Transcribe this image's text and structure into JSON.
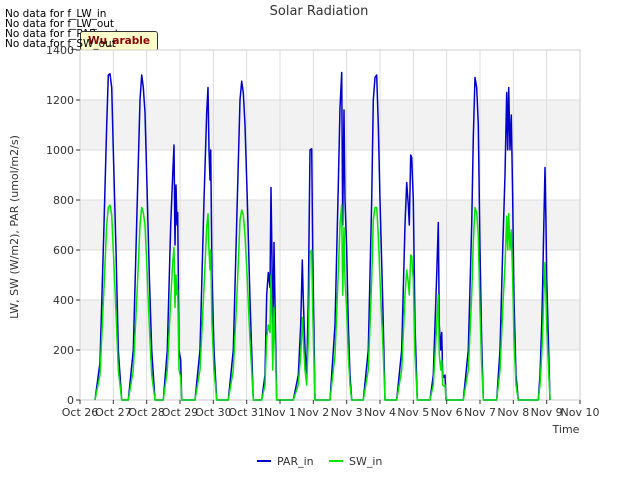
{
  "nodata_messages": [
    "No data for f_LW_in",
    "No data for f_LW_out",
    "No data for f_PAR_out",
    "No data for f_SW_out"
  ],
  "badge_text": "Wu_arable",
  "chart_data": {
    "type": "line",
    "title": "Solar Radiation",
    "xlabel": "Time",
    "ylabel": "LW, SW (W/m2), PAR (umol/m2/s)",
    "xlim": [
      "2023-10-26",
      "2023-11-10"
    ],
    "ylim": [
      0,
      1400
    ],
    "x_ticks": [
      "Oct 26",
      "Oct 27",
      "Oct 28",
      "Oct 29",
      "Oct 30",
      "Oct 31",
      "Nov 1",
      "Nov 2",
      "Nov 3",
      "Nov 4",
      "Nov 5",
      "Nov 6",
      "Nov 7",
      "Nov 8",
      "Nov 9",
      "Nov 10"
    ],
    "y_ticks": [
      0,
      200,
      400,
      600,
      800,
      1000,
      1200,
      1400
    ],
    "grid": true,
    "legend_position": "bottom-center",
    "x_unit": "day",
    "series": [
      {
        "name": "PAR_in",
        "color": "#0000cc",
        "points": [
          [
            0.45,
            0
          ],
          [
            0.6,
            150
          ],
          [
            0.72,
            700
          ],
          [
            0.8,
            1100
          ],
          [
            0.85,
            1300
          ],
          [
            0.9,
            1305
          ],
          [
            0.95,
            1250
          ],
          [
            1.0,
            1000
          ],
          [
            1.08,
            600
          ],
          [
            1.15,
            200
          ],
          [
            1.25,
            0
          ],
          [
            1.45,
            0
          ],
          [
            1.6,
            200
          ],
          [
            1.72,
            800
          ],
          [
            1.8,
            1200
          ],
          [
            1.85,
            1300
          ],
          [
            1.9,
            1250
          ],
          [
            1.95,
            1150
          ],
          [
            2.0,
            900
          ],
          [
            2.08,
            500
          ],
          [
            2.15,
            200
          ],
          [
            2.25,
            0
          ],
          [
            2.5,
            0
          ],
          [
            2.62,
            200
          ],
          [
            2.72,
            700
          ],
          [
            2.78,
            900
          ],
          [
            2.82,
            1020
          ],
          [
            2.85,
            620
          ],
          [
            2.88,
            860
          ],
          [
            2.91,
            700
          ],
          [
            2.93,
            750
          ],
          [
            2.97,
            200
          ],
          [
            3.02,
            160
          ],
          [
            3.05,
            0
          ],
          [
            3.45,
            0
          ],
          [
            3.6,
            200
          ],
          [
            3.72,
            800
          ],
          [
            3.8,
            1150
          ],
          [
            3.84,
            1250
          ],
          [
            3.87,
            1000
          ],
          [
            3.9,
            880
          ],
          [
            3.92,
            1000
          ],
          [
            3.96,
            500
          ],
          [
            4.02,
            200
          ],
          [
            4.1,
            0
          ],
          [
            4.45,
            0
          ],
          [
            4.6,
            200
          ],
          [
            4.72,
            800
          ],
          [
            4.8,
            1200
          ],
          [
            4.85,
            1275
          ],
          [
            4.9,
            1230
          ],
          [
            4.95,
            1100
          ],
          [
            5.02,
            800
          ],
          [
            5.1,
            400
          ],
          [
            5.2,
            0
          ],
          [
            5.45,
            0
          ],
          [
            5.55,
            100
          ],
          [
            5.6,
            420
          ],
          [
            5.65,
            510
          ],
          [
            5.7,
            450
          ],
          [
            5.73,
            850
          ],
          [
            5.76,
            560
          ],
          [
            5.78,
            200
          ],
          [
            5.82,
            630
          ],
          [
            5.85,
            380
          ],
          [
            5.9,
            0
          ],
          [
            6.4,
            0
          ],
          [
            6.55,
            100
          ],
          [
            6.62,
            300
          ],
          [
            6.67,
            560
          ],
          [
            6.7,
            400
          ],
          [
            6.75,
            200
          ],
          [
            6.8,
            100
          ],
          [
            6.85,
            400
          ],
          [
            6.9,
            1000
          ],
          [
            6.95,
            1005
          ],
          [
            6.98,
            600
          ],
          [
            7.05,
            0
          ],
          [
            7.5,
            0
          ],
          [
            7.65,
            300
          ],
          [
            7.75,
            860
          ],
          [
            7.8,
            1170
          ],
          [
            7.85,
            1310
          ],
          [
            7.88,
            700
          ],
          [
            7.92,
            1160
          ],
          [
            7.95,
            800
          ],
          [
            8.0,
            600
          ],
          [
            8.05,
            300
          ],
          [
            8.1,
            100
          ],
          [
            8.15,
            0
          ],
          [
            8.5,
            0
          ],
          [
            8.65,
            200
          ],
          [
            8.75,
            800
          ],
          [
            8.8,
            1200
          ],
          [
            8.85,
            1290
          ],
          [
            8.9,
            1300
          ],
          [
            8.95,
            1100
          ],
          [
            9.0,
            800
          ],
          [
            9.08,
            400
          ],
          [
            9.15,
            0
          ],
          [
            9.5,
            0
          ],
          [
            9.65,
            200
          ],
          [
            9.75,
            700
          ],
          [
            9.8,
            870
          ],
          [
            9.85,
            780
          ],
          [
            9.88,
            700
          ],
          [
            9.92,
            980
          ],
          [
            9.95,
            970
          ],
          [
            10.0,
            800
          ],
          [
            10.05,
            300
          ],
          [
            10.12,
            0
          ],
          [
            10.5,
            0
          ],
          [
            10.6,
            100
          ],
          [
            10.65,
            300
          ],
          [
            10.7,
            500
          ],
          [
            10.75,
            710
          ],
          [
            10.78,
            300
          ],
          [
            10.82,
            200
          ],
          [
            10.85,
            270
          ],
          [
            10.88,
            100
          ],
          [
            10.92,
            90
          ],
          [
            10.95,
            100
          ],
          [
            10.98,
            0
          ],
          [
            11.5,
            0
          ],
          [
            11.65,
            200
          ],
          [
            11.75,
            700
          ],
          [
            11.8,
            1050
          ],
          [
            11.85,
            1290
          ],
          [
            11.9,
            1250
          ],
          [
            11.95,
            1100
          ],
          [
            12.0,
            600
          ],
          [
            12.05,
            230
          ],
          [
            12.1,
            0
          ],
          [
            12.5,
            0
          ],
          [
            12.6,
            200
          ],
          [
            12.68,
            600
          ],
          [
            12.75,
            900
          ],
          [
            12.8,
            1230
          ],
          [
            12.83,
            1000
          ],
          [
            12.86,
            1250
          ],
          [
            12.9,
            1000
          ],
          [
            12.94,
            1140
          ],
          [
            12.98,
            800
          ],
          [
            13.02,
            400
          ],
          [
            13.08,
            100
          ],
          [
            13.15,
            0
          ],
          [
            13.75,
            0
          ],
          [
            13.8,
            100
          ],
          [
            13.85,
            300
          ],
          [
            13.88,
            470
          ],
          [
            13.9,
            600
          ],
          [
            13.95,
            930
          ],
          [
            13.98,
            700
          ],
          [
            14.0,
            490
          ],
          [
            14.05,
            250
          ],
          [
            14.1,
            0
          ]
        ]
      },
      {
        "name": "SW_in",
        "color": "#00e600",
        "points": [
          [
            0.45,
            0
          ],
          [
            0.6,
            100
          ],
          [
            0.72,
            450
          ],
          [
            0.8,
            700
          ],
          [
            0.85,
            770
          ],
          [
            0.9,
            780
          ],
          [
            0.95,
            740
          ],
          [
            1.0,
            600
          ],
          [
            1.08,
            350
          ],
          [
            1.15,
            120
          ],
          [
            1.25,
            0
          ],
          [
            1.45,
            0
          ],
          [
            1.6,
            120
          ],
          [
            1.72,
            450
          ],
          [
            1.8,
            700
          ],
          [
            1.85,
            770
          ],
          [
            1.9,
            750
          ],
          [
            1.95,
            700
          ],
          [
            2.0,
            550
          ],
          [
            2.08,
            300
          ],
          [
            2.15,
            100
          ],
          [
            2.25,
            0
          ],
          [
            2.5,
            0
          ],
          [
            2.62,
            120
          ],
          [
            2.72,
            400
          ],
          [
            2.78,
            550
          ],
          [
            2.82,
            610
          ],
          [
            2.85,
            370
          ],
          [
            2.88,
            500
          ],
          [
            2.91,
            420
          ],
          [
            2.93,
            440
          ],
          [
            2.97,
            120
          ],
          [
            3.02,
            90
          ],
          [
            3.05,
            0
          ],
          [
            3.45,
            0
          ],
          [
            3.6,
            120
          ],
          [
            3.72,
            450
          ],
          [
            3.8,
            690
          ],
          [
            3.84,
            745
          ],
          [
            3.87,
            600
          ],
          [
            3.9,
            520
          ],
          [
            3.92,
            600
          ],
          [
            3.96,
            300
          ],
          [
            4.02,
            120
          ],
          [
            4.1,
            0
          ],
          [
            4.45,
            0
          ],
          [
            4.6,
            120
          ],
          [
            4.72,
            450
          ],
          [
            4.8,
            720
          ],
          [
            4.85,
            760
          ],
          [
            4.9,
            740
          ],
          [
            4.95,
            660
          ],
          [
            5.02,
            480
          ],
          [
            5.1,
            240
          ],
          [
            5.2,
            0
          ],
          [
            5.45,
            0
          ],
          [
            5.55,
            60
          ],
          [
            5.6,
            250
          ],
          [
            5.65,
            300
          ],
          [
            5.7,
            270
          ],
          [
            5.73,
            500
          ],
          [
            5.76,
            330
          ],
          [
            5.78,
            120
          ],
          [
            5.82,
            370
          ],
          [
            5.85,
            230
          ],
          [
            5.9,
            0
          ],
          [
            6.4,
            0
          ],
          [
            6.55,
            60
          ],
          [
            6.62,
            180
          ],
          [
            6.67,
            330
          ],
          [
            6.7,
            240
          ],
          [
            6.75,
            120
          ],
          [
            6.8,
            60
          ],
          [
            6.85,
            240
          ],
          [
            6.9,
            590
          ],
          [
            6.95,
            600
          ],
          [
            6.98,
            360
          ],
          [
            7.05,
            0
          ],
          [
            7.5,
            0
          ],
          [
            7.65,
            180
          ],
          [
            7.75,
            510
          ],
          [
            7.8,
            700
          ],
          [
            7.85,
            780
          ],
          [
            7.88,
            420
          ],
          [
            7.92,
            690
          ],
          [
            7.95,
            480
          ],
          [
            8.0,
            360
          ],
          [
            8.05,
            180
          ],
          [
            8.1,
            60
          ],
          [
            8.15,
            0
          ],
          [
            8.5,
            0
          ],
          [
            8.65,
            120
          ],
          [
            8.75,
            480
          ],
          [
            8.8,
            720
          ],
          [
            8.85,
            770
          ],
          [
            8.9,
            770
          ],
          [
            8.95,
            660
          ],
          [
            9.0,
            480
          ],
          [
            9.08,
            240
          ],
          [
            9.15,
            0
          ],
          [
            9.5,
            0
          ],
          [
            9.65,
            120
          ],
          [
            9.75,
            420
          ],
          [
            9.8,
            520
          ],
          [
            9.85,
            470
          ],
          [
            9.88,
            420
          ],
          [
            9.92,
            580
          ],
          [
            9.95,
            575
          ],
          [
            10.0,
            480
          ],
          [
            10.05,
            180
          ],
          [
            10.12,
            0
          ],
          [
            10.5,
            0
          ],
          [
            10.6,
            60
          ],
          [
            10.65,
            180
          ],
          [
            10.7,
            300
          ],
          [
            10.75,
            420
          ],
          [
            10.78,
            180
          ],
          [
            10.82,
            120
          ],
          [
            10.85,
            160
          ],
          [
            10.88,
            60
          ],
          [
            10.92,
            55
          ],
          [
            10.95,
            60
          ],
          [
            10.98,
            0
          ],
          [
            11.5,
            0
          ],
          [
            11.65,
            120
          ],
          [
            11.75,
            420
          ],
          [
            11.8,
            630
          ],
          [
            11.85,
            770
          ],
          [
            11.9,
            750
          ],
          [
            11.95,
            660
          ],
          [
            12.0,
            360
          ],
          [
            12.05,
            140
          ],
          [
            12.1,
            0
          ],
          [
            12.5,
            0
          ],
          [
            12.6,
            120
          ],
          [
            12.68,
            360
          ],
          [
            12.75,
            540
          ],
          [
            12.8,
            735
          ],
          [
            12.83,
            600
          ],
          [
            12.86,
            745
          ],
          [
            12.9,
            600
          ],
          [
            12.94,
            680
          ],
          [
            12.98,
            480
          ],
          [
            13.02,
            240
          ],
          [
            13.08,
            60
          ],
          [
            13.15,
            0
          ],
          [
            13.75,
            0
          ],
          [
            13.8,
            60
          ],
          [
            13.85,
            180
          ],
          [
            13.88,
            280
          ],
          [
            13.9,
            360
          ],
          [
            13.95,
            550
          ],
          [
            13.98,
            420
          ],
          [
            14.0,
            290
          ],
          [
            14.05,
            150
          ],
          [
            14.1,
            0
          ]
        ]
      }
    ]
  }
}
